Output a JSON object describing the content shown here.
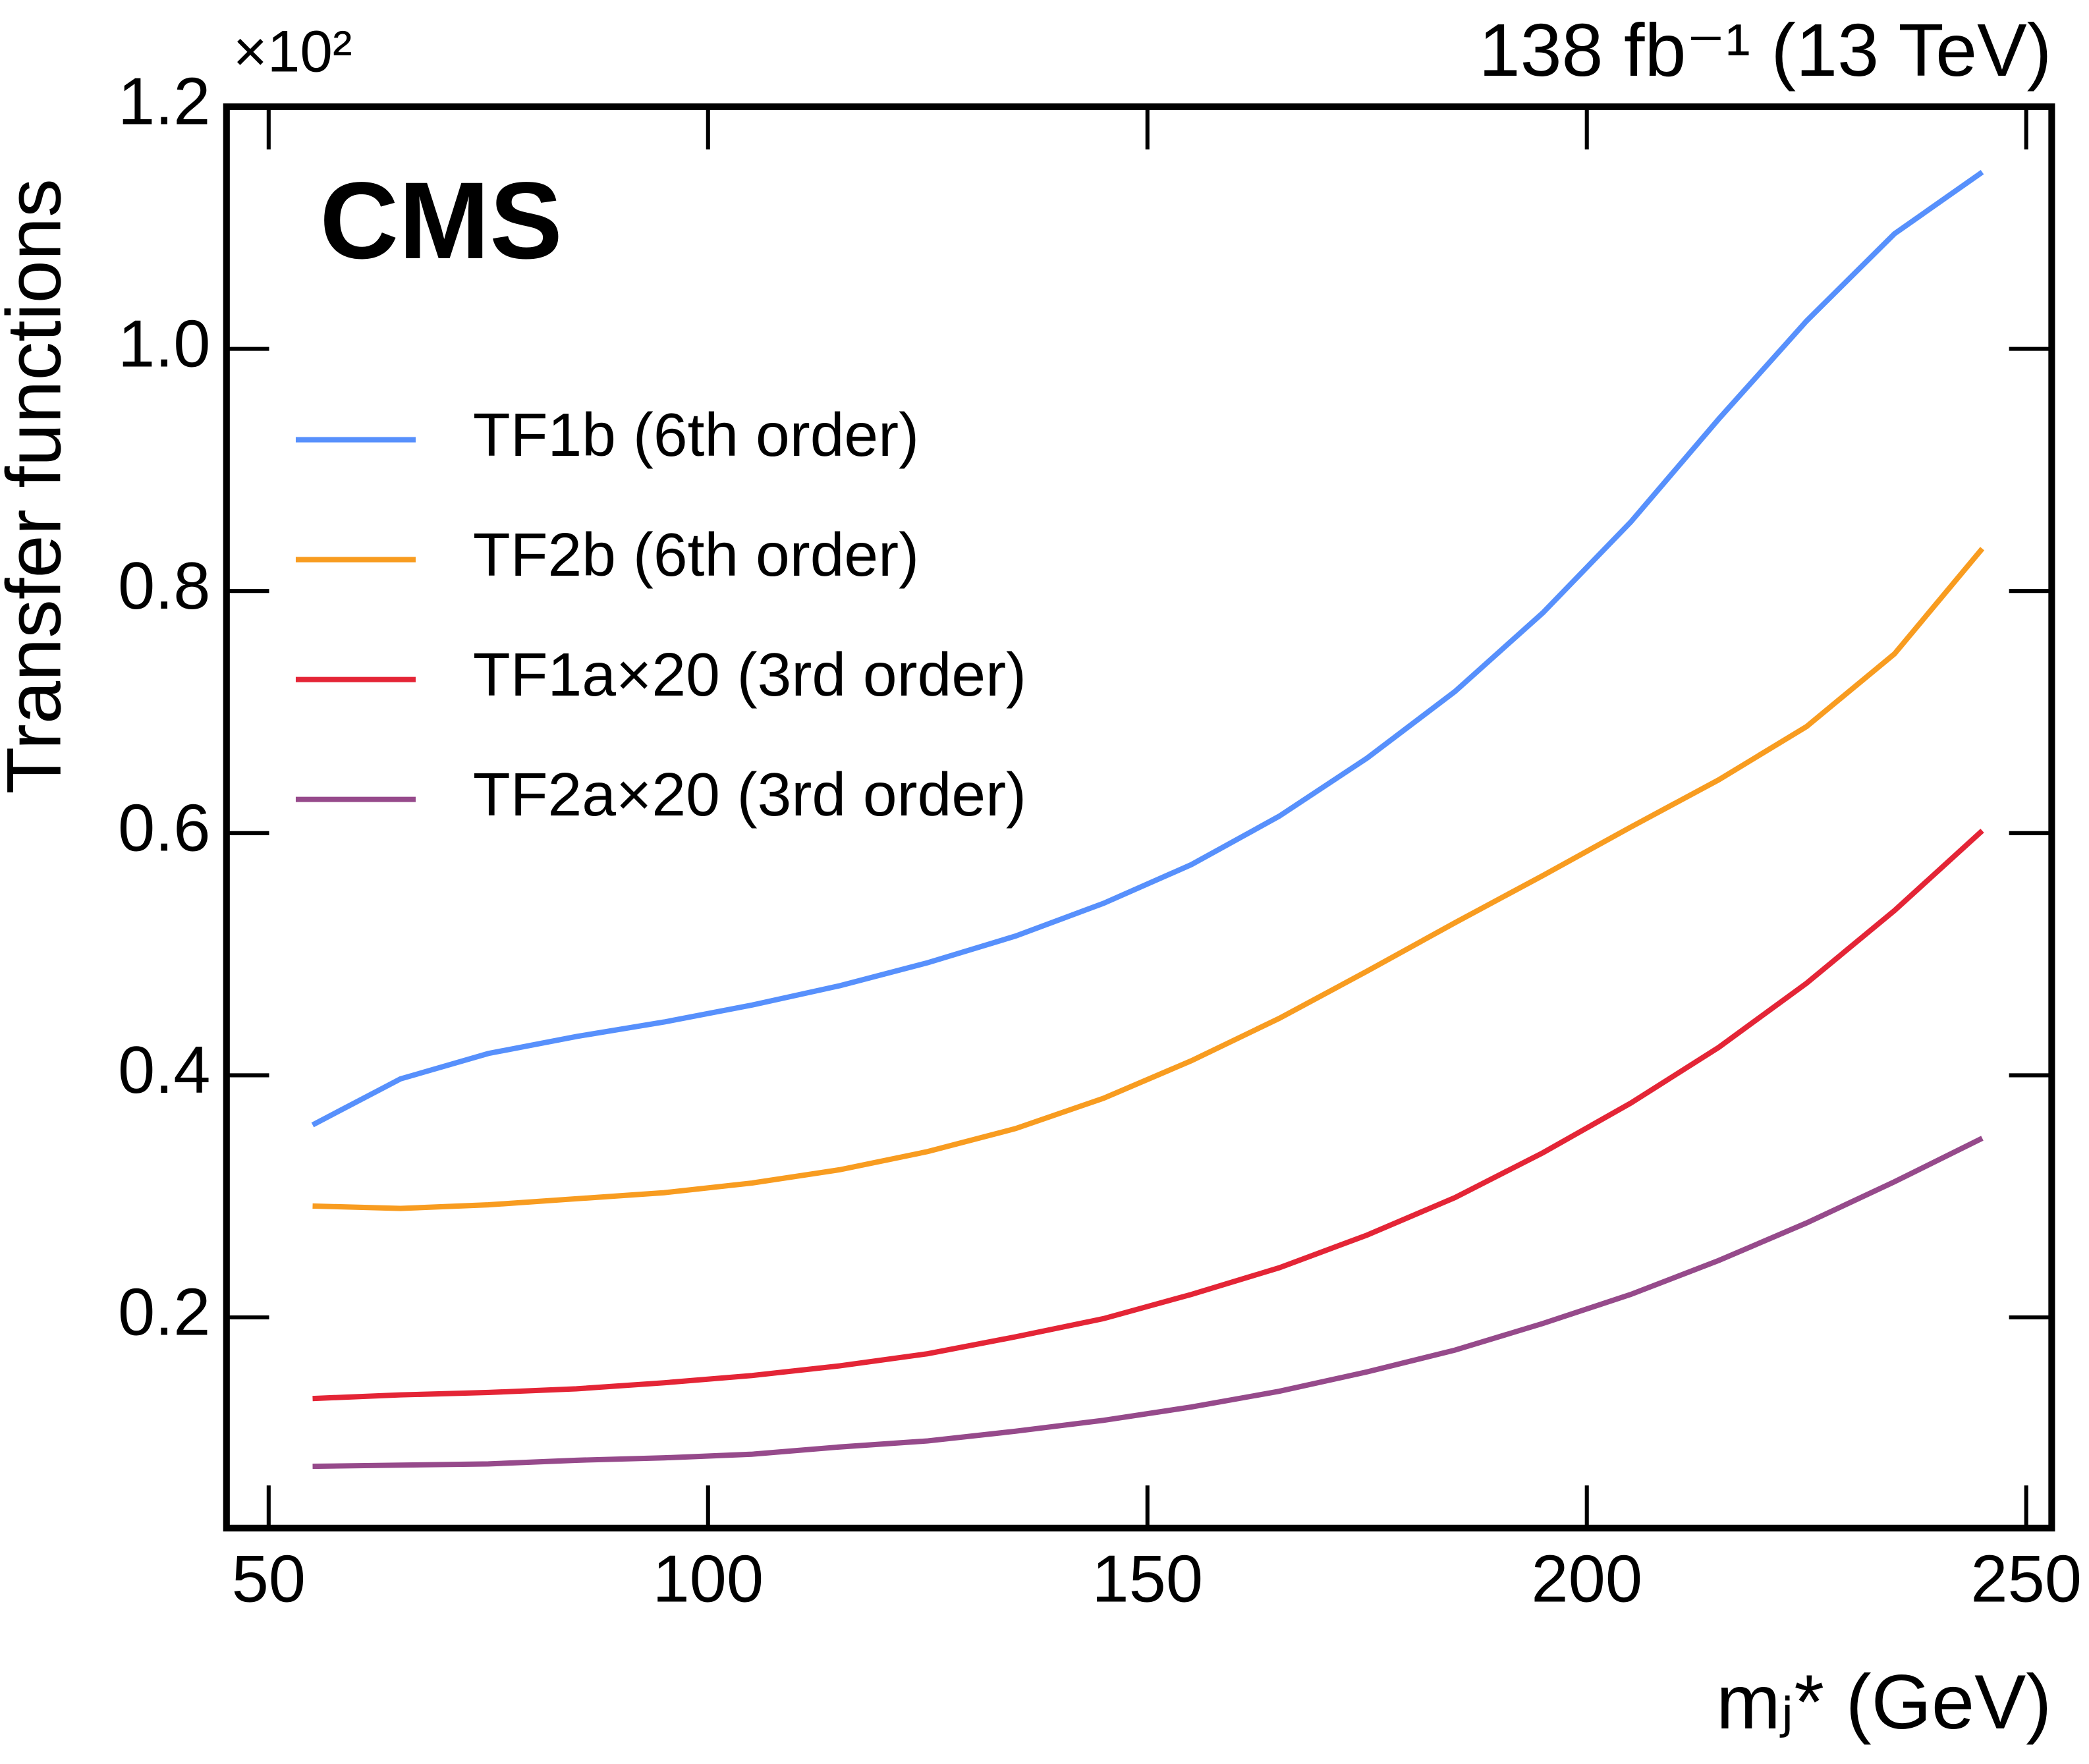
{
  "chart_data": {
    "type": "line",
    "title": "138 fb⁻¹ (13 TeV)",
    "label": "CMS",
    "multiplier": "×10²",
    "x_label": "mⱼ* (GeV)",
    "y_label": "Transfer functions",
    "x": [
      55,
      65,
      75,
      85,
      95,
      105,
      115,
      125,
      135,
      145,
      155,
      165,
      175,
      185,
      195,
      205,
      215,
      225,
      235,
      245
    ],
    "series": [
      {
        "name": "TF1b (6th order)",
        "color": "#5790fc",
        "values": [
          0.359,
          0.397,
          0.418,
          0.432,
          0.444,
          0.458,
          0.474,
          0.493,
          0.515,
          0.542,
          0.574,
          0.614,
          0.662,
          0.717,
          0.782,
          0.857,
          0.942,
          1.023,
          1.095,
          1.146
        ]
      },
      {
        "name": "TF2b (6th order)",
        "color": "#f89c20",
        "values": [
          0.292,
          0.29,
          0.293,
          0.298,
          0.303,
          0.311,
          0.322,
          0.337,
          0.356,
          0.381,
          0.412,
          0.447,
          0.486,
          0.526,
          0.565,
          0.605,
          0.644,
          0.688,
          0.748,
          0.835
        ]
      },
      {
        "name": "TF1a×20 (3rd order)",
        "color": "#e42536",
        "values": [
          0.133,
          0.136,
          0.138,
          0.141,
          0.146,
          0.152,
          0.16,
          0.17,
          0.184,
          0.199,
          0.219,
          0.241,
          0.268,
          0.299,
          0.336,
          0.377,
          0.423,
          0.476,
          0.536,
          0.602
        ]
      },
      {
        "name": "TF2a×20 (3rd order)",
        "color": "#964a8b",
        "values": [
          0.077,
          0.078,
          0.079,
          0.082,
          0.084,
          0.087,
          0.093,
          0.098,
          0.106,
          0.115,
          0.126,
          0.139,
          0.155,
          0.173,
          0.195,
          0.219,
          0.247,
          0.278,
          0.312,
          0.348
        ]
      }
    ],
    "xlim": [
      45.2,
      252.9
    ],
    "xticks": [
      50,
      100,
      150,
      200,
      250
    ],
    "ylim": [
      0.026,
      1.2
    ],
    "yticks": [
      0.2,
      0.4,
      0.6,
      0.8,
      {
        "value": 1,
        "label": "1.0"
      },
      1.2
    ],
    "legend": "upper left"
  }
}
